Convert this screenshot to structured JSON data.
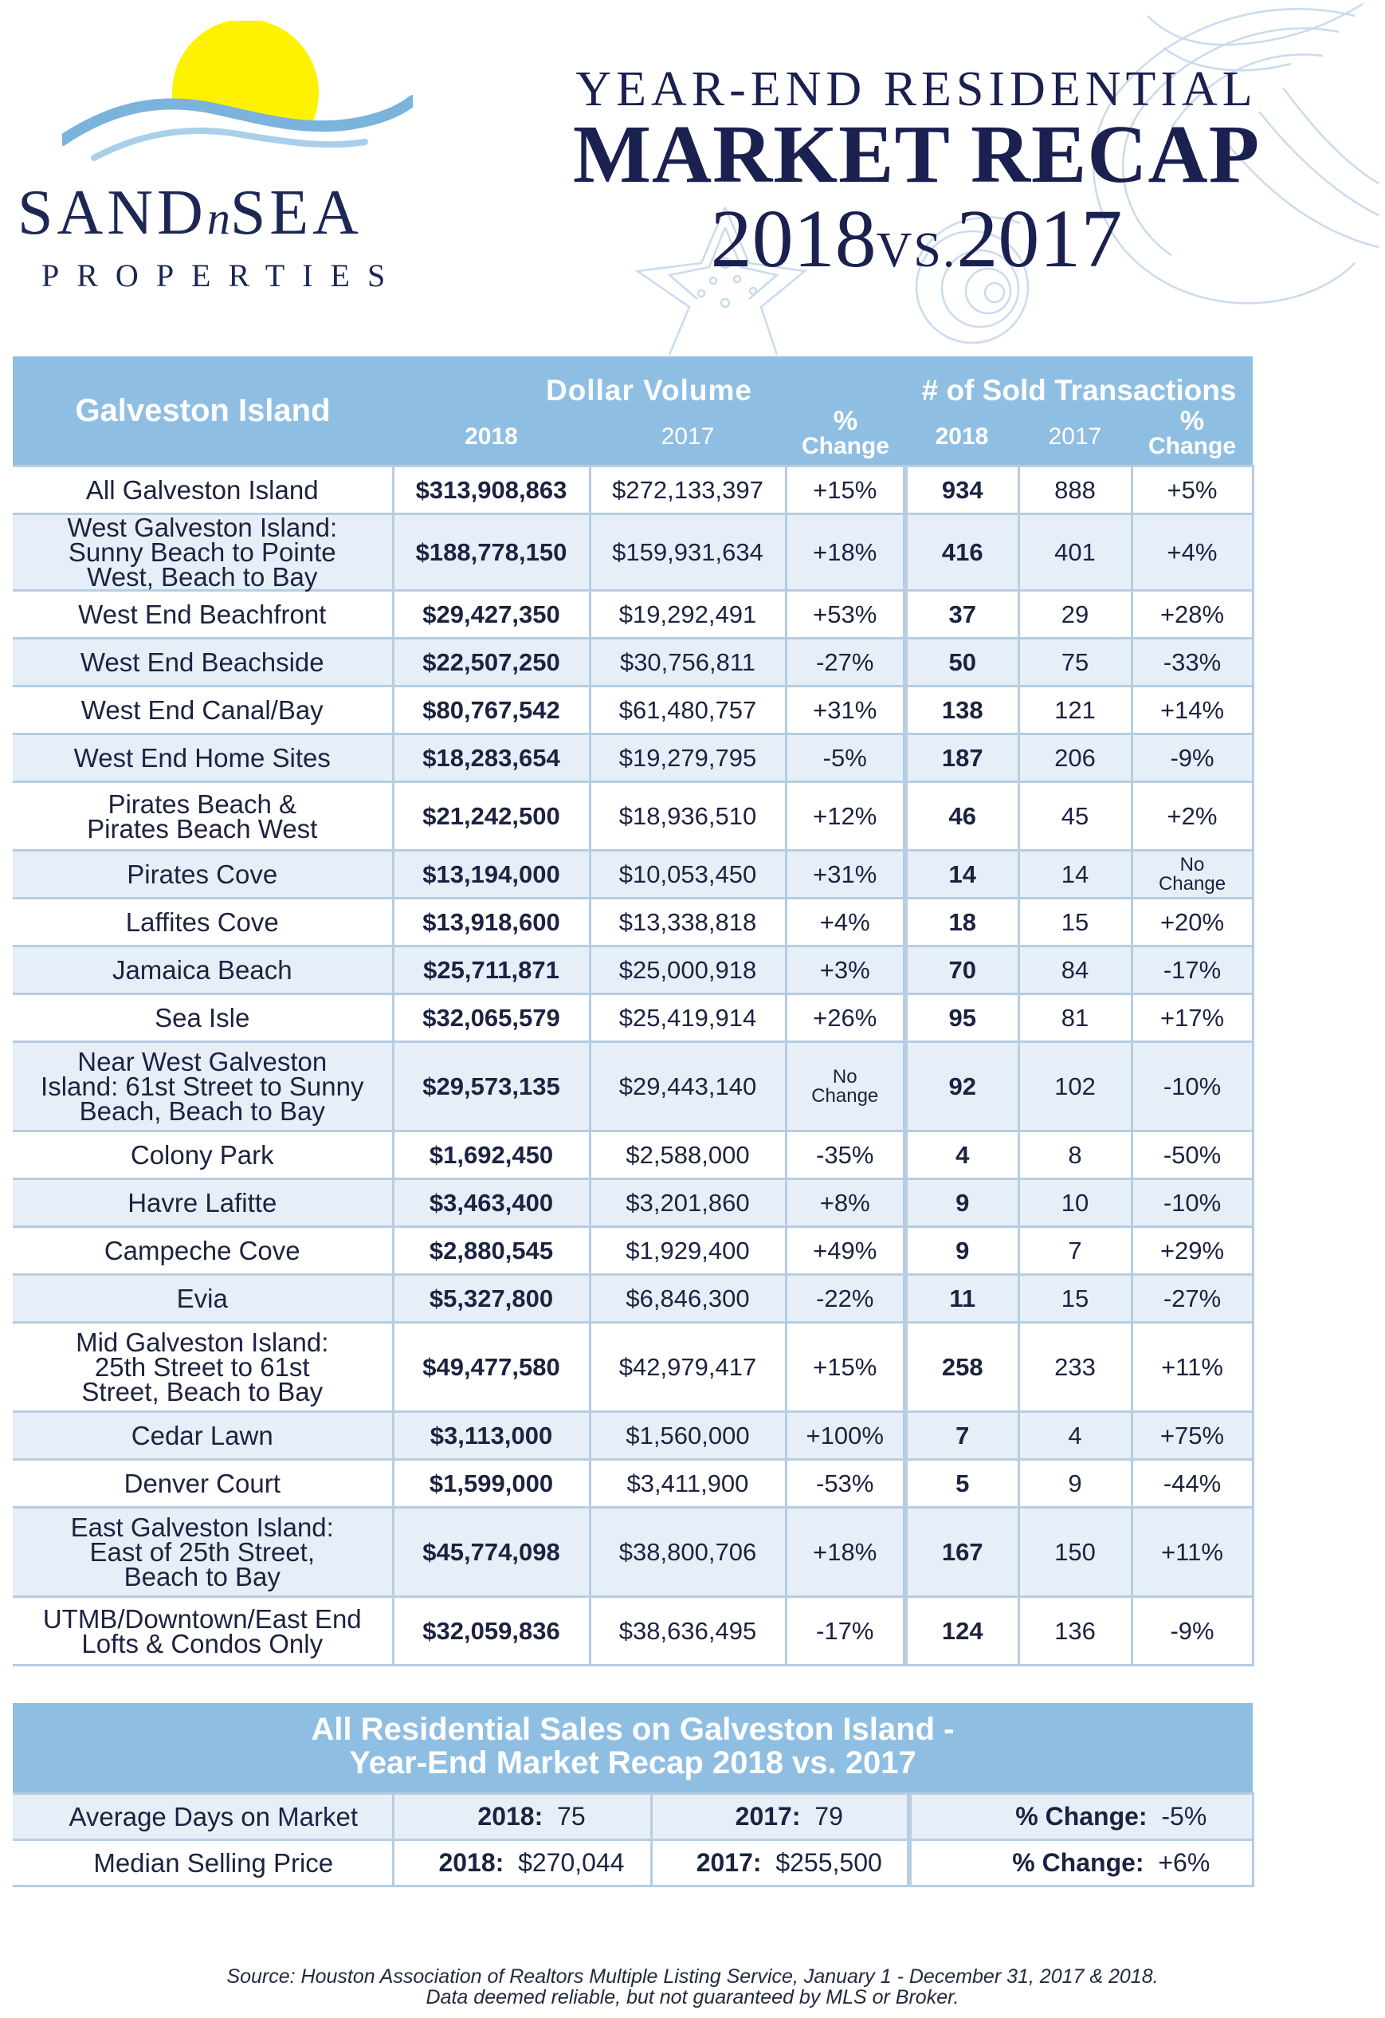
{
  "brand": {
    "name_part1": "SAND",
    "name_part2": "n",
    "name_part3": "SEA",
    "subtitle": "PROPERTIES",
    "colors": {
      "sun": "#fff200",
      "wave": "#7ab3db",
      "navy": "#1c2754"
    }
  },
  "title": {
    "line1": "YEAR-END RESIDENTIAL",
    "line2": "MARKET RECAP",
    "year_a": "2018",
    "vs": "VS.",
    "year_b": "2017"
  },
  "table": {
    "region_header": "Galveston Island",
    "dollar_group": "Dollar Volume",
    "trans_group": "# of Sold Transactions",
    "pct_symbol": "%",
    "change_label": "Change",
    "col_2018": "2018",
    "col_2017": "2017",
    "header_color": "#8fbee3",
    "rows": [
      {
        "name": "All Galveston Island",
        "dv18": "$313,908,863",
        "dv17": "$272,133,397",
        "dvp": "+15%",
        "t18": "934",
        "t17": "888",
        "tp": "+5%"
      },
      {
        "name": "West Galveston Island: Sunny Beach to Pointe West, Beach to Bay",
        "dv18": "$188,778,150",
        "dv17": "$159,931,634",
        "dvp": "+18%",
        "t18": "416",
        "t17": "401",
        "tp": "+4%"
      },
      {
        "name": "West End Beachfront",
        "dv18": "$29,427,350",
        "dv17": "$19,292,491",
        "dvp": "+53%",
        "t18": "37",
        "t17": "29",
        "tp": "+28%"
      },
      {
        "name": "West End Beachside",
        "dv18": "$22,507,250",
        "dv17": "$30,756,811",
        "dvp": "-27%",
        "t18": "50",
        "t17": "75",
        "tp": "-33%"
      },
      {
        "name": "West End Canal/Bay",
        "dv18": "$80,767,542",
        "dv17": "$61,480,757",
        "dvp": "+31%",
        "t18": "138",
        "t17": "121",
        "tp": "+14%"
      },
      {
        "name": "West End Home Sites",
        "dv18": "$18,283,654",
        "dv17": "$19,279,795",
        "dvp": "-5%",
        "t18": "187",
        "t17": "206",
        "tp": "-9%"
      },
      {
        "name": "Pirates Beach & Pirates Beach West",
        "dv18": "$21,242,500",
        "dv17": "$18,936,510",
        "dvp": "+12%",
        "t18": "46",
        "t17": "45",
        "tp": "+2%"
      },
      {
        "name": "Pirates Cove",
        "dv18": "$13,194,000",
        "dv17": "$10,053,450",
        "dvp": "+31%",
        "t18": "14",
        "t17": "14",
        "tp": "No Change"
      },
      {
        "name": "Laffites Cove",
        "dv18": "$13,918,600",
        "dv17": "$13,338,818",
        "dvp": "+4%",
        "t18": "18",
        "t17": "15",
        "tp": "+20%"
      },
      {
        "name": "Jamaica Beach",
        "dv18": "$25,711,871",
        "dv17": "$25,000,918",
        "dvp": "+3%",
        "t18": "70",
        "t17": "84",
        "tp": "-17%"
      },
      {
        "name": "Sea Isle",
        "dv18": "$32,065,579",
        "dv17": "$25,419,914",
        "dvp": "+26%",
        "t18": "95",
        "t17": "81",
        "tp": "+17%"
      },
      {
        "name": "Near West Galveston Island: 61st Street to Sunny Beach, Beach to Bay",
        "dv18": "$29,573,135",
        "dv17": "$29,443,140",
        "dvp": "No Change",
        "t18": "92",
        "t17": "102",
        "tp": "-10%"
      },
      {
        "name": "Colony Park",
        "dv18": "$1,692,450",
        "dv17": "$2,588,000",
        "dvp": "-35%",
        "t18": "4",
        "t17": "8",
        "tp": "-50%"
      },
      {
        "name": "Havre Lafitte",
        "dv18": "$3,463,400",
        "dv17": "$3,201,860",
        "dvp": "+8%",
        "t18": "9",
        "t17": "10",
        "tp": "-10%"
      },
      {
        "name": "Campeche Cove",
        "dv18": "$2,880,545",
        "dv17": "$1,929,400",
        "dvp": "+49%",
        "t18": "9",
        "t17": "7",
        "tp": "+29%"
      },
      {
        "name": "Evia",
        "dv18": "$5,327,800",
        "dv17": "$6,846,300",
        "dvp": "-22%",
        "t18": "11",
        "t17": "15",
        "tp": "-27%"
      },
      {
        "name": "Mid Galveston Island: 25th Street to 61st Street, Beach to Bay",
        "dv18": "$49,477,580",
        "dv17": "$42,979,417",
        "dvp": "+15%",
        "t18": "258",
        "t17": "233",
        "tp": "+11%"
      },
      {
        "name": "Cedar Lawn",
        "dv18": "$3,113,000",
        "dv17": "$1,560,000",
        "dvp": "+100%",
        "t18": "7",
        "t17": "4",
        "tp": "+75%"
      },
      {
        "name": "Denver Court",
        "dv18": "$1,599,000",
        "dv17": "$3,411,900",
        "dvp": "-53%",
        "t18": "5",
        "t17": "9",
        "tp": "-44%"
      },
      {
        "name": "East Galveston Island: East of 25th Street, Beach to Bay",
        "dv18": "$45,774,098",
        "dv17": "$38,800,706",
        "dvp": "+18%",
        "t18": "167",
        "t17": "150",
        "tp": "+11%"
      },
      {
        "name": "UTMB/Downtown/East End Lofts & Condos Only",
        "dv18": "$32,059,836",
        "dv17": "$38,636,495",
        "dvp": "-17%",
        "t18": "124",
        "t17": "136",
        "tp": "-9%"
      }
    ]
  },
  "summary": {
    "heading_line1": "All Residential Sales on Galveston Island -",
    "heading_line2": "Year-End Market Recap 2018 vs. 2017",
    "label_2018": "2018:",
    "label_2017": "2017:",
    "label_change": "% Change:",
    "rows": [
      {
        "label": "Average Days on Market",
        "v2018": "75",
        "v2017": "79",
        "change": "-5%"
      },
      {
        "label": "Median Selling Price",
        "v2018": "$270,044",
        "v2017": "$255,500",
        "change": "+6%"
      }
    ]
  },
  "source": {
    "line1": "Source: Houston Association of Realtors Multiple Listing Service, January 1 - December 31, 2017 & 2018.",
    "line2": "Data deemed reliable, but not guaranteed by MLS or Broker."
  }
}
